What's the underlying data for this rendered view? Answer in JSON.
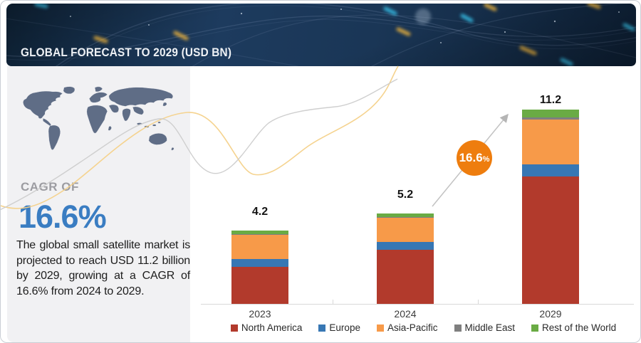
{
  "header": {
    "title": "GLOBAL FORECAST TO 2029 (USD BN)"
  },
  "summary": {
    "cagr_label": "CAGR OF",
    "cagr_value": "16.6%",
    "accent_color": "#3a7dc2",
    "description": "The global small satellite market is projected to reach USD 11.2 billion by 2029, growing at a CAGR of 16.6% from 2024 to 2029."
  },
  "chart_data": {
    "type": "bar",
    "stacked": true,
    "title": "Global small satellite market forecast (USD BN)",
    "categories": [
      "2023",
      "2024",
      "2029"
    ],
    "totals": [
      4.2,
      5.2,
      11.2
    ],
    "total_labels": [
      "4.2",
      "5.2",
      "11.2"
    ],
    "series": [
      {
        "name": "North America",
        "color": "#b23a2c",
        "values": [
          2.13,
          3.1,
          7.33
        ]
      },
      {
        "name": "Europe",
        "color": "#3777b4",
        "values": [
          0.44,
          0.45,
          0.71
        ]
      },
      {
        "name": "Asia-Pacific",
        "color": "#f79a49",
        "values": [
          1.4,
          1.4,
          2.57
        ]
      },
      {
        "name": "Middle East",
        "color": "#7f7f7f",
        "values": [
          0.03,
          0.04,
          0.12
        ]
      },
      {
        "name": "Rest of the World",
        "color": "#6aab44",
        "values": [
          0.24,
          0.23,
          0.45
        ]
      }
    ],
    "annotation": {
      "value": "16.6",
      "suffix": "%",
      "color": "#ee7d0e"
    },
    "ylim": [
      0,
      11.5
    ],
    "grid": false,
    "legend_position": "bottom"
  }
}
